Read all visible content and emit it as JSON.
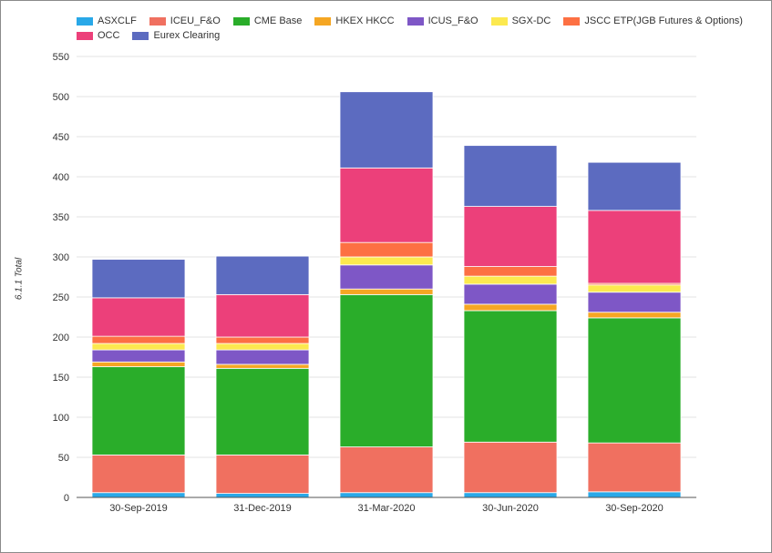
{
  "chart_data": {
    "type": "bar",
    "stacked": true,
    "ylabel": "6.1.1 Total",
    "ylim": [
      0,
      550
    ],
    "yticks": [
      0,
      50,
      100,
      150,
      200,
      250,
      300,
      350,
      400,
      450,
      500,
      550
    ],
    "grid": true,
    "legend_position": "top-left",
    "categories": [
      "30-Sep-2019",
      "31-Dec-2019",
      "31-Mar-2020",
      "30-Jun-2020",
      "30-Sep-2020"
    ],
    "series": [
      {
        "name": "ASXCLF",
        "color": "#29a8e8",
        "values": [
          6,
          5,
          6,
          6,
          7
        ]
      },
      {
        "name": "ICEU_F&O",
        "color": "#f07060",
        "values": [
          47,
          48,
          57,
          63,
          61
        ]
      },
      {
        "name": "CME Base",
        "color": "#2aad2a",
        "values": [
          110,
          108,
          190,
          164,
          156
        ]
      },
      {
        "name": "HKEX HKCC",
        "color": "#f5a623",
        "values": [
          6,
          5,
          7,
          8,
          7
        ]
      },
      {
        "name": "ICUS_F&O",
        "color": "#7e57c6",
        "values": [
          15,
          18,
          30,
          25,
          25
        ]
      },
      {
        "name": "SGX-DC",
        "color": "#fce94f",
        "values": [
          8,
          8,
          10,
          10,
          9
        ]
      },
      {
        "name": "JSCC ETP(JGB Futures & Options)",
        "color": "#fd7043",
        "values": [
          9,
          8,
          18,
          12,
          2
        ]
      },
      {
        "name": "OCC",
        "color": "#ec407a",
        "values": [
          48,
          53,
          93,
          75,
          91
        ]
      },
      {
        "name": "Eurex Clearing",
        "color": "#5c6bc0",
        "values": [
          48,
          48,
          95,
          76,
          60
        ]
      }
    ]
  }
}
